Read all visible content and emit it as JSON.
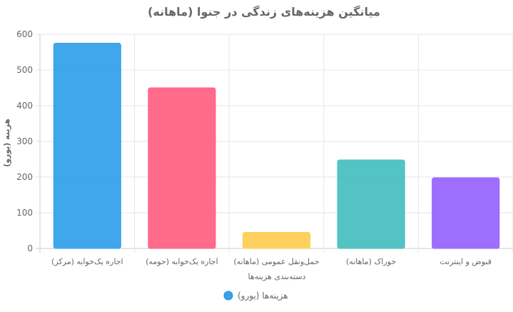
{
  "chart_data": {
    "type": "bar",
    "title": "میانگین هزینه‌های زندگی در جنوا (ماهانه)",
    "xlabel": "دسته‌بندی هزینه‌ها",
    "ylabel": "هزینه (یورو)",
    "ylim": [
      0,
      600
    ],
    "yticks": [
      0,
      100,
      200,
      300,
      400,
      500,
      600
    ],
    "categories": [
      "اجاره یک‌خوابه (مرکز)",
      "اجاره یک‌خوابه (حومه)",
      "حمل‌ونقل عمومی (ماهانه)",
      "خوراک (ماهانه)",
      "قبوض و اینترنت"
    ],
    "series": [
      {
        "name": "هزینه‌ها (یورو)",
        "values": [
          575,
          450,
          45,
          248,
          198
        ]
      }
    ],
    "colors": [
      "#36a2eb",
      "#ff6384",
      "#ffcd56",
      "#4bc0c0",
      "#9966ff"
    ],
    "legend_color": "#36a2eb",
    "grid": true,
    "legend_position": "bottom"
  }
}
